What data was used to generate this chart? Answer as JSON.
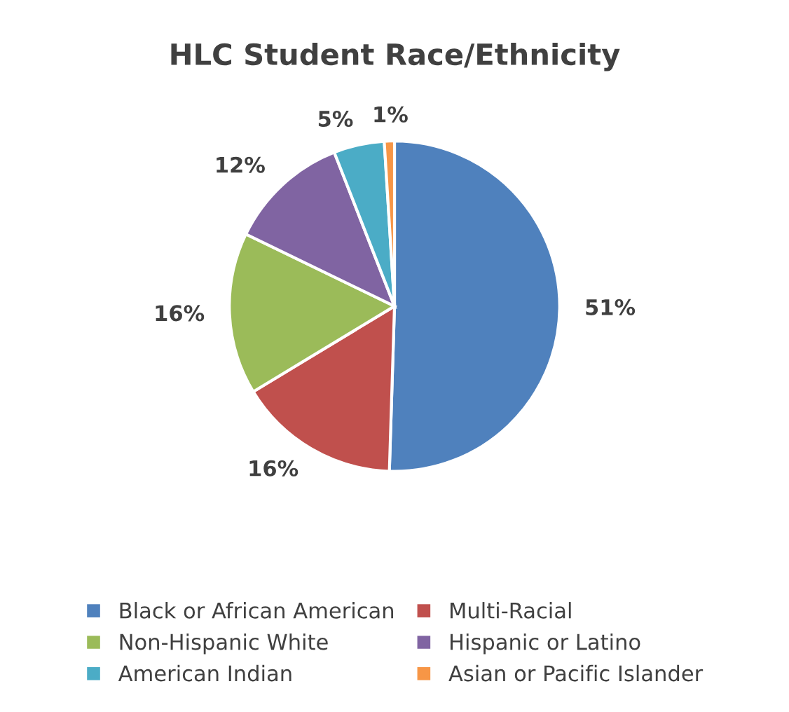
{
  "chart_data": {
    "type": "pie",
    "title": "HLC Student Race/Ethnicity",
    "categories": [
      "Black or African American",
      "Multi-Racial",
      "Non-Hispanic White",
      "Hispanic or Latino",
      "American Indian",
      "Asian or Pacific Islander"
    ],
    "values": [
      51,
      16,
      16,
      12,
      5,
      1
    ],
    "value_labels": [
      "51%",
      "16%",
      "16%",
      "12%",
      "5%",
      "1%"
    ],
    "colors": [
      "#4f81bd",
      "#c0504d",
      "#9bbb59",
      "#8064a2",
      "#4bacc6",
      "#f79646"
    ],
    "legend": "bottom"
  }
}
